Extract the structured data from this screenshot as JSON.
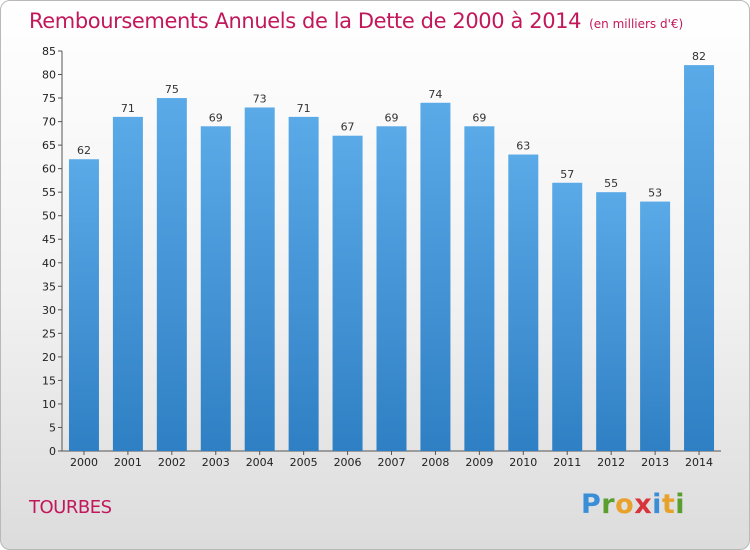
{
  "chart_data": {
    "type": "bar",
    "title": "Remboursements Annuels de la Dette de 2000 à 2014",
    "subtitle": "(en milliers d'€)",
    "categories": [
      "2000",
      "2001",
      "2002",
      "2003",
      "2004",
      "2005",
      "2006",
      "2007",
      "2008",
      "2009",
      "2010",
      "2011",
      "2012",
      "2013",
      "2014"
    ],
    "values": [
      62,
      71,
      75,
      69,
      73,
      71,
      67,
      69,
      74,
      69,
      63,
      57,
      55,
      53,
      82
    ],
    "ylim": [
      0,
      85
    ],
    "yticks": [
      0,
      5,
      10,
      15,
      20,
      25,
      30,
      35,
      40,
      45,
      50,
      55,
      60,
      65,
      70,
      75,
      80,
      85
    ],
    "grid": false,
    "bar_color": "#4f9fe0",
    "bar_color_dark": "#2f7fc4"
  },
  "footer": {
    "city": "TOURBES",
    "logo_letters": [
      {
        "ch": "P",
        "color": "#3a8ed8"
      },
      {
        "ch": "r",
        "color": "#5a9e2f"
      },
      {
        "ch": "o",
        "color": "#e8a12a"
      },
      {
        "ch": "x",
        "color": "#d8343b"
      },
      {
        "ch": "i",
        "color": "#3a8ed8"
      },
      {
        "ch": "t",
        "color": "#e8a12a"
      },
      {
        "ch": "i",
        "color": "#5a9e2f"
      }
    ]
  }
}
